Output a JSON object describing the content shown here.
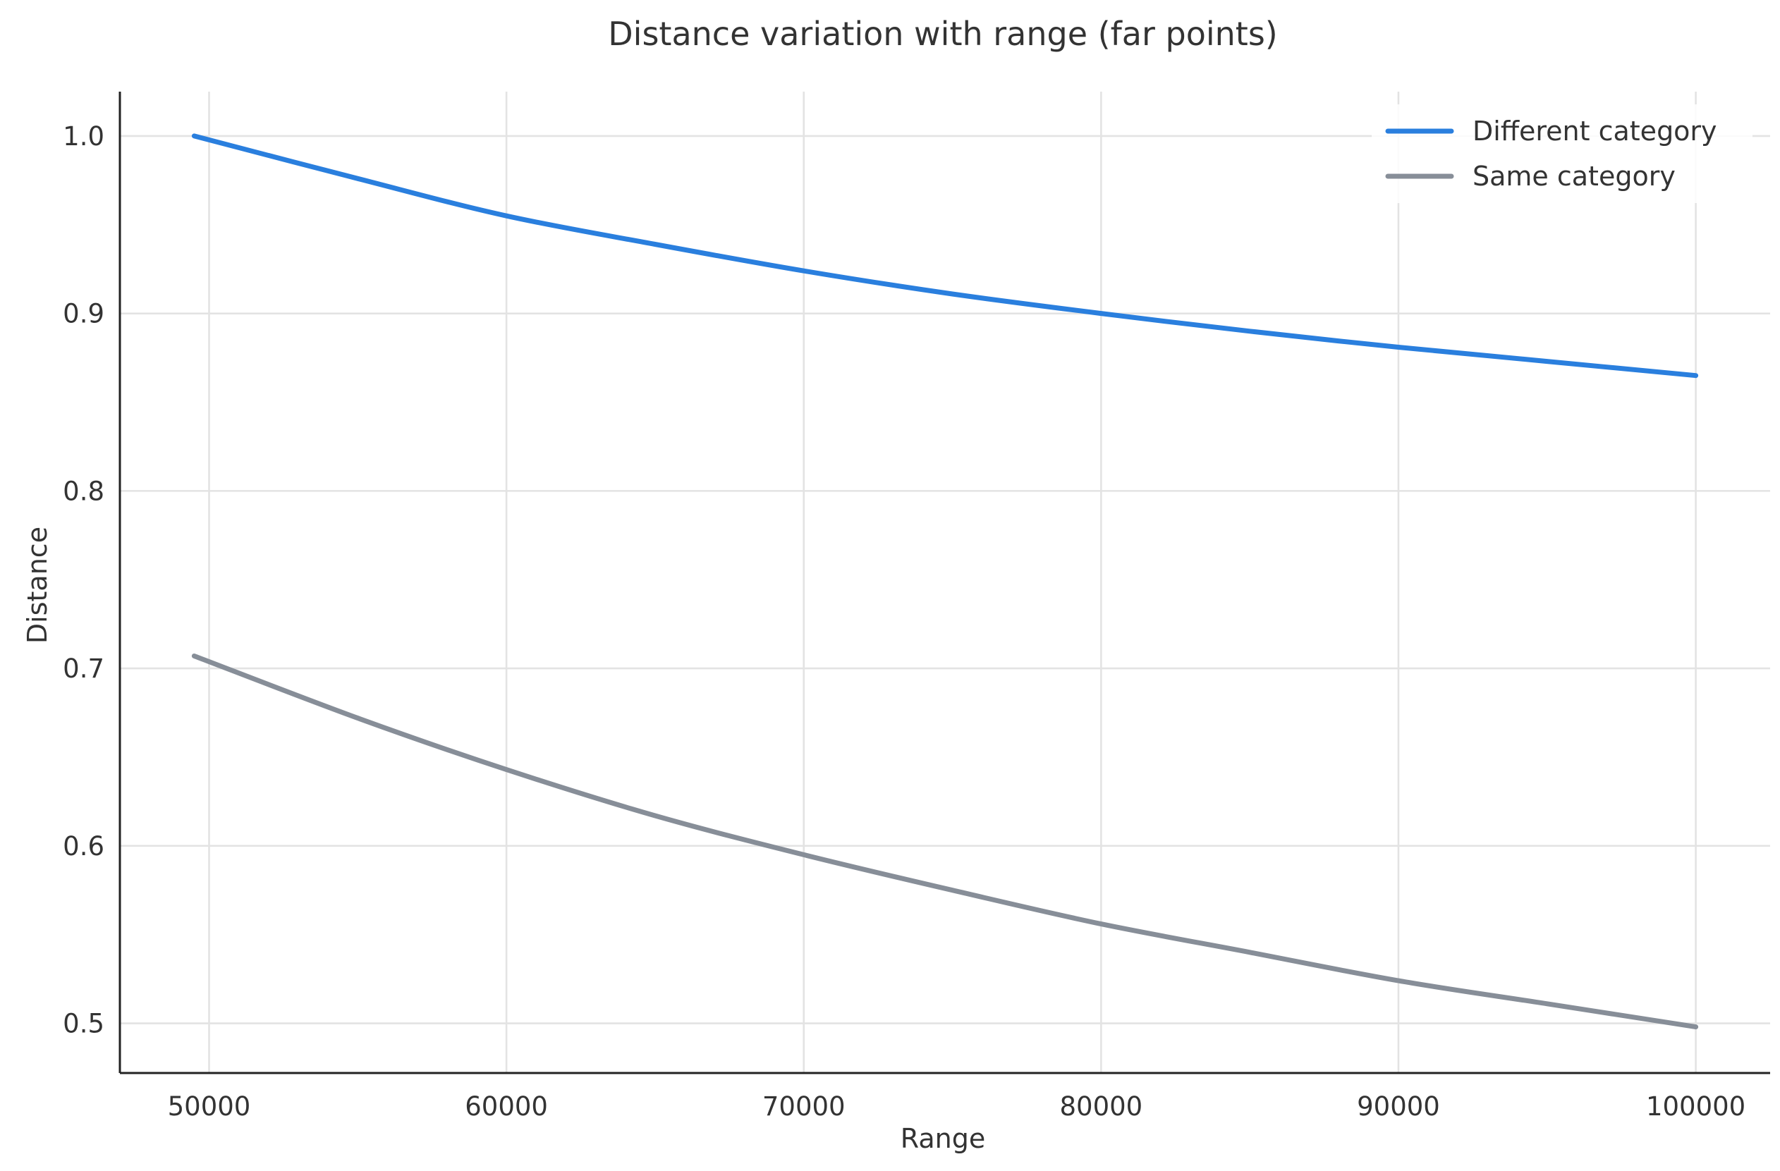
{
  "chart_data": {
    "type": "line",
    "title": "Distance variation with range (far points)",
    "xlabel": "Range",
    "ylabel": "Distance",
    "xlim": [
      47000,
      102500
    ],
    "ylim": [
      0.472,
      1.025
    ],
    "xticks": [
      50000,
      60000,
      70000,
      80000,
      90000,
      100000
    ],
    "yticks": [
      0.5,
      0.6,
      0.7,
      0.8,
      0.9,
      1.0
    ],
    "ytick_labels": [
      "0.5",
      "0.6",
      "0.7",
      "0.8",
      "0.9",
      "1.0"
    ],
    "grid": true,
    "legend_position": "top-right",
    "series": [
      {
        "name": "Different category",
        "color": "#2a7fde",
        "x": [
          49500,
          55000,
          60000,
          65000,
          70000,
          75000,
          80000,
          85000,
          90000,
          95000,
          100000
        ],
        "y": [
          1.0,
          0.976,
          0.955,
          0.939,
          0.924,
          0.911,
          0.9,
          0.89,
          0.881,
          0.873,
          0.865
        ]
      },
      {
        "name": "Same category",
        "color": "#878e98",
        "x": [
          49500,
          55000,
          60000,
          65000,
          70000,
          75000,
          80000,
          85000,
          90000,
          95000,
          100000
        ],
        "y": [
          0.707,
          0.672,
          0.643,
          0.617,
          0.595,
          0.575,
          0.556,
          0.54,
          0.524,
          0.511,
          0.498
        ]
      }
    ]
  }
}
